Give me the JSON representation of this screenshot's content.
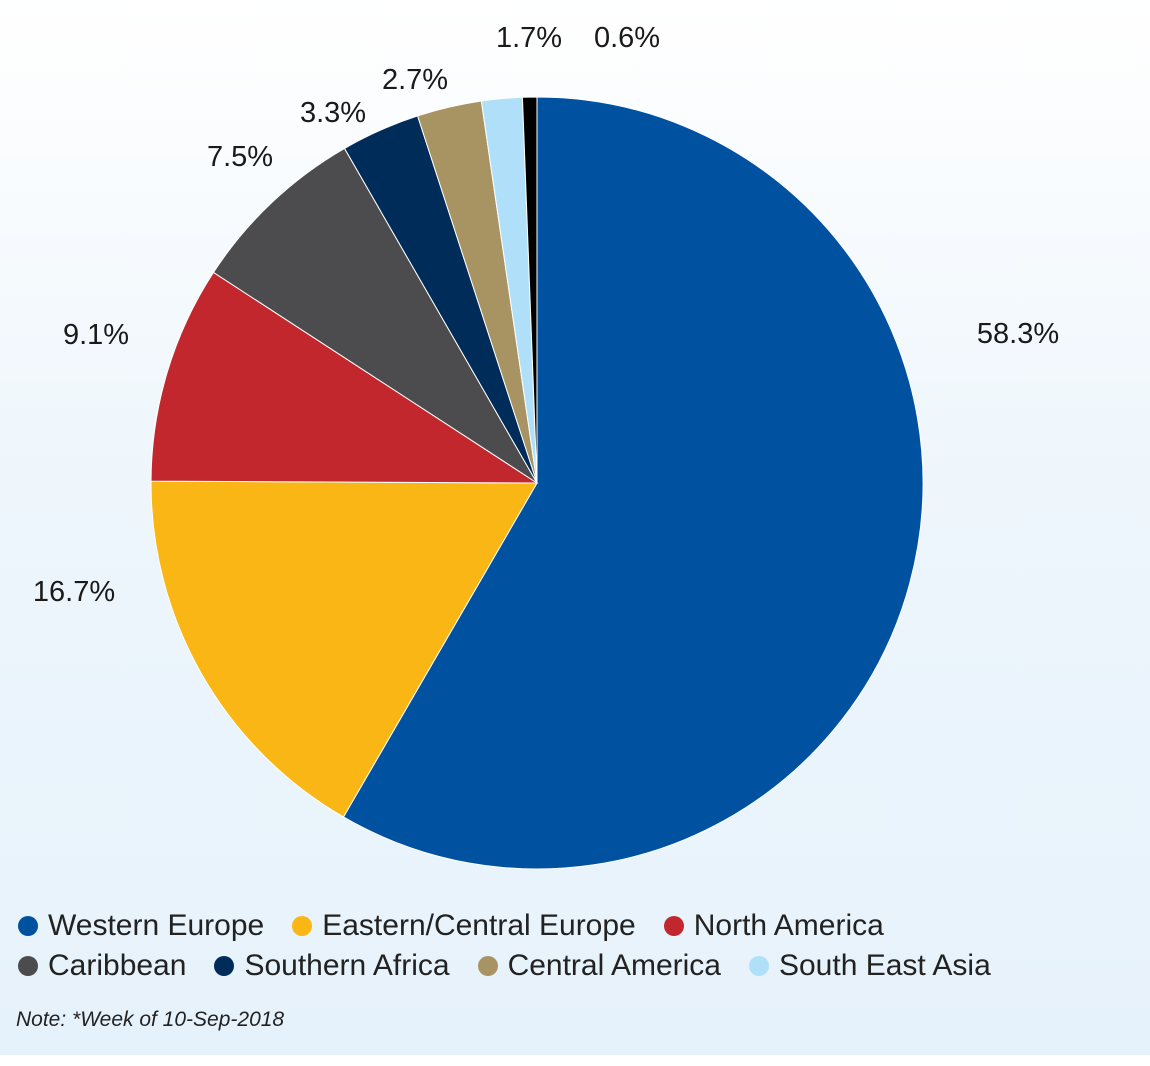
{
  "chart_data": {
    "type": "pie",
    "slices": [
      {
        "name": "Western Europe",
        "value": 58.3,
        "label": "58.3%",
        "color": "#0052a1"
      },
      {
        "name": "Eastern/Central Europe",
        "value": 16.7,
        "label": "16.7%",
        "color": "#fab615"
      },
      {
        "name": "North America",
        "value": 9.1,
        "label": "9.1%",
        "color": "#c1272d"
      },
      {
        "name": "Caribbean",
        "value": 7.5,
        "label": "7.5%",
        "color": "#4c4b4d"
      },
      {
        "name": "Southern Africa",
        "value": 3.3,
        "label": "3.3%",
        "color": "#002c5a"
      },
      {
        "name": "Central America",
        "value": 2.7,
        "label": "2.7%",
        "color": "#a89463"
      },
      {
        "name": "South East Asia",
        "value": 1.7,
        "label": "1.7%",
        "color": "#b0e0f9"
      },
      {
        "name": "",
        "value": 0.6,
        "label": "0.6%",
        "color": "#000000"
      }
    ],
    "start_angle": "12 o'clock",
    "direction": "clockwise",
    "legend_placement": "bottom"
  },
  "legend": {
    "rows": [
      [
        {
          "label": "Western Europe",
          "color": "#0052a1"
        },
        {
          "label": "Eastern/Central Europe",
          "color": "#fab615"
        },
        {
          "label": "North America",
          "color": "#c1272d"
        }
      ],
      [
        {
          "label": "Caribbean",
          "color": "#4c4b4d"
        },
        {
          "label": "Southern Africa",
          "color": "#002c5a"
        },
        {
          "label": "Central America",
          "color": "#a89463"
        },
        {
          "label": "South East Asia",
          "color": "#b0e0f9"
        }
      ]
    ]
  },
  "note": "Note: *Week of 10-Sep-2018"
}
